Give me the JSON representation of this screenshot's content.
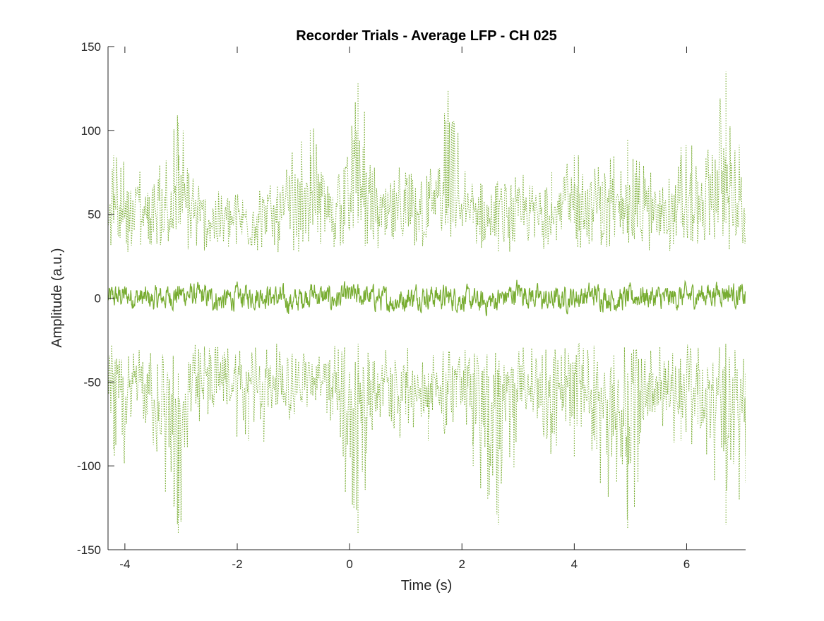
{
  "chart_data": {
    "type": "line",
    "title": "Recorder Trials - Average LFP - CH 025",
    "xlabel": "Time (s)",
    "ylabel": "Amplitude (a.u.)",
    "xlim": [
      -4.3,
      7.05
    ],
    "ylim": [
      -150,
      150
    ],
    "xticks": [
      -4,
      -2,
      0,
      2,
      4,
      6
    ],
    "xtick_labels": [
      "-4",
      "-2",
      "0",
      "2",
      "4",
      "6"
    ],
    "yticks": [
      -150,
      -100,
      -50,
      0,
      50,
      100,
      150
    ],
    "ytick_labels": [
      "-150",
      "-100",
      "-50",
      "0",
      "50",
      "100",
      "150"
    ],
    "grid": false,
    "legend": "none",
    "color": "#77AC30",
    "series": [
      {
        "style": "solid",
        "x": [
          -4.3,
          -4.0,
          -3.5,
          -3.0,
          -2.6,
          -2.3,
          -2.0,
          -1.5,
          -1.0,
          -0.7,
          -0.3,
          0.0,
          0.4,
          0.8,
          1.2,
          1.6,
          2.0,
          2.4,
          2.8,
          3.0,
          3.5,
          4.0,
          4.4,
          4.8,
          5.2,
          5.6,
          6.0,
          6.4,
          6.7,
          7.05
        ],
        "values": [
          0,
          3,
          -2,
          5,
          2,
          -3,
          1,
          4,
          -5,
          6,
          -2,
          3,
          1,
          -4,
          3,
          2,
          -1,
          -6,
          2,
          8,
          -3,
          1,
          4,
          -2,
          3,
          -1,
          2,
          5,
          8,
          0
        ]
      },
      {
        "style": "dotted",
        "x": [
          -4.3,
          -4.2,
          -3.6,
          -3.05,
          -2.7,
          -2.3,
          -1.9,
          -1.3,
          -0.7,
          -0.3,
          0.15,
          0.5,
          1.0,
          1.4,
          1.75,
          2.2,
          2.6,
          3.1,
          3.6,
          4.0,
          4.5,
          4.95,
          5.4,
          5.9,
          6.2,
          6.7,
          7.05
        ],
        "values": [
          40,
          85,
          60,
          105,
          55,
          45,
          50,
          60,
          100,
          60,
          128,
          55,
          65,
          70,
          118,
          60,
          55,
          60,
          75,
          85,
          70,
          95,
          60,
          90,
          70,
          135,
          50
        ]
      },
      {
        "style": "dotted",
        "x": [
          -4.3,
          -4.2,
          -3.6,
          -3.05,
          -2.7,
          -2.2,
          -1.8,
          -1.2,
          -0.8,
          -0.3,
          0.15,
          0.5,
          1.0,
          1.4,
          1.9,
          2.2,
          2.65,
          3.1,
          3.5,
          4.0,
          4.4,
          4.95,
          5.4,
          5.9,
          6.2,
          6.7,
          7.05
        ],
        "values": [
          -40,
          -90,
          -70,
          -140,
          -65,
          -50,
          -85,
          -60,
          -55,
          -70,
          -140,
          -60,
          -70,
          -85,
          -65,
          -100,
          -135,
          -55,
          -75,
          -95,
          -90,
          -137,
          -60,
          -85,
          -75,
          -135,
          -110
        ]
      }
    ]
  }
}
